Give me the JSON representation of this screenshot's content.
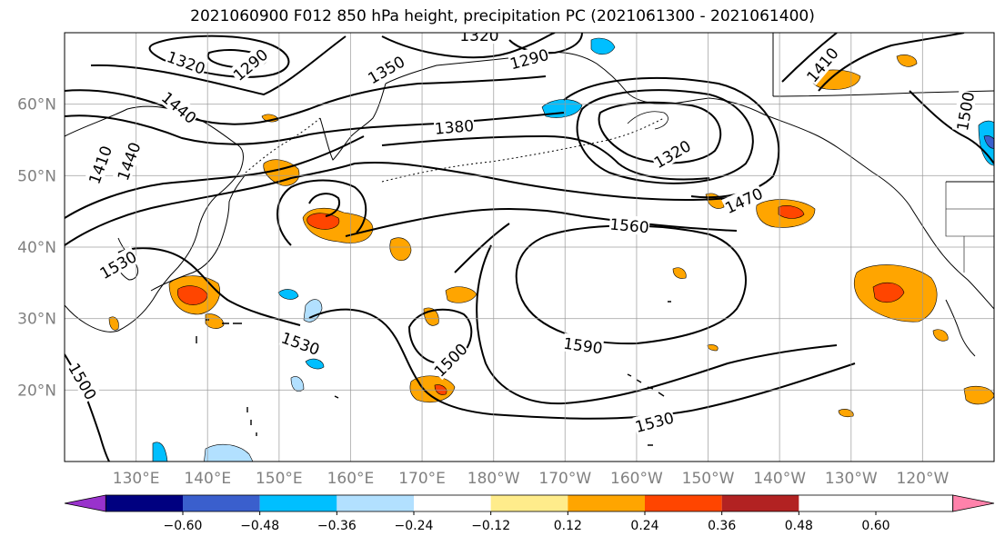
{
  "title": "2021060900 F012 850 hPa height, precipitation PC (2021061300 - 2021061400)",
  "map": {
    "lon_range": [
      120,
      250
    ],
    "lat_range": [
      10,
      70
    ],
    "lon_ticks": [
      {
        "lon": 130,
        "label": "130°E"
      },
      {
        "lon": 140,
        "label": "140°E"
      },
      {
        "lon": 150,
        "label": "150°E"
      },
      {
        "lon": 160,
        "label": "160°E"
      },
      {
        "lon": 170,
        "label": "170°E"
      },
      {
        "lon": 180,
        "label": "180°W"
      },
      {
        "lon": 190,
        "label": "170°W"
      },
      {
        "lon": 200,
        "label": "160°W"
      },
      {
        "lon": 210,
        "label": "150°W"
      },
      {
        "lon": 220,
        "label": "140°W"
      },
      {
        "lon": 230,
        "label": "130°W"
      },
      {
        "lon": 240,
        "label": "120°W"
      }
    ],
    "lat_ticks": [
      {
        "lat": 20,
        "label": "20°N"
      },
      {
        "lat": 30,
        "label": "30°N"
      },
      {
        "lat": 40,
        "label": "40°N"
      },
      {
        "lat": 50,
        "label": "50°N"
      },
      {
        "lat": 60,
        "label": "60°N"
      }
    ],
    "contour_labels": [
      {
        "text": "1320",
        "lon": 137,
        "lat": 65.8,
        "rot": 20
      },
      {
        "text": "1290",
        "lon": 146,
        "lat": 65.5,
        "rot": -40
      },
      {
        "text": "1350",
        "lon": 165,
        "lat": 64.8,
        "rot": -30
      },
      {
        "text": "1320",
        "lon": 178,
        "lat": 69.6,
        "rot": 0
      },
      {
        "text": "1290",
        "lon": 185,
        "lat": 66.3,
        "rot": -15
      },
      {
        "text": "1410",
        "lon": 226,
        "lat": 65.5,
        "rot": -50
      },
      {
        "text": "1500",
        "lon": 246,
        "lat": 59,
        "rot": -80
      },
      {
        "text": "1440",
        "lon": 136,
        "lat": 59.5,
        "rot": 40
      },
      {
        "text": "1380",
        "lon": 174.5,
        "lat": 56.8,
        "rot": -5
      },
      {
        "text": "1320",
        "lon": 205,
        "lat": 53,
        "rot": -30
      },
      {
        "text": "1470",
        "lon": 215,
        "lat": 46.5,
        "rot": -25
      },
      {
        "text": "1560",
        "lon": 199,
        "lat": 43,
        "rot": 5
      },
      {
        "text": "1410",
        "lon": 125,
        "lat": 51.5,
        "rot": -70
      },
      {
        "text": "1440",
        "lon": 129,
        "lat": 52,
        "rot": -70
      },
      {
        "text": "1530",
        "lon": 127.5,
        "lat": 37.5,
        "rot": -30
      },
      {
        "text": "1530",
        "lon": 153,
        "lat": 26.5,
        "rot": 20
      },
      {
        "text": "1500",
        "lon": 174,
        "lat": 24.2,
        "rot": -45
      },
      {
        "text": "1590",
        "lon": 192.5,
        "lat": 26.2,
        "rot": 8
      },
      {
        "text": "1530",
        "lon": 202.5,
        "lat": 15.5,
        "rot": -15
      },
      {
        "text": "1500",
        "lon": 122.5,
        "lat": 21.2,
        "rot": 60
      }
    ]
  },
  "colorbar": {
    "colors": [
      "#9932cc",
      "#000080",
      "#3a5fcd",
      "#00bfff",
      "#b2e0ff",
      "#ffffff",
      "#ffec8b",
      "#ffa500",
      "#ff4500",
      "#b22222",
      "#ff82ab"
    ],
    "tick_labels": [
      "−0.60",
      "−0.48",
      "−0.36",
      "−0.24",
      "−0.12",
      "0.12",
      "0.24",
      "0.36",
      "0.48",
      "0.60"
    ]
  }
}
